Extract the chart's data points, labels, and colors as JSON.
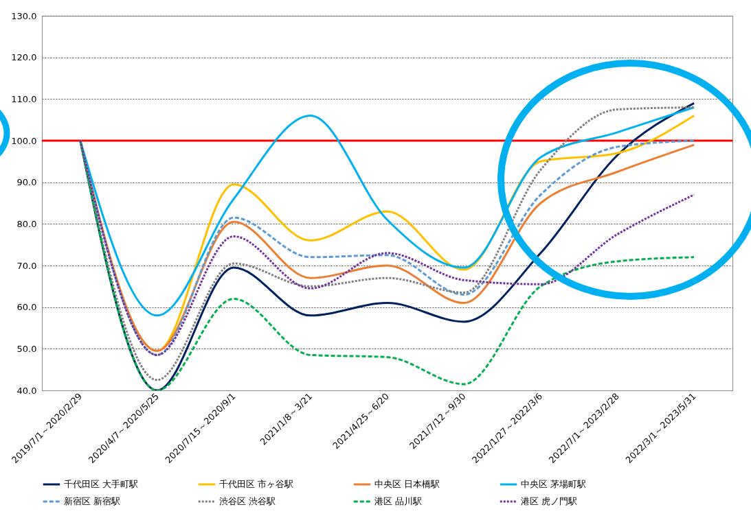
{
  "chart_data": {
    "type": "line",
    "categories": [
      "2019/7/1～2020/2/29",
      "2020/4/7～2020/5/25",
      "2020/7/15～2020/9/1",
      "2021/1/8～3/21",
      "2021/4/25～6/20",
      "2021/7/12～9/30",
      "2022/1/27～2022/3/6",
      "2022/7/1～2023/2/28",
      "2022/3/1～2023/5/31"
    ],
    "series": [
      {
        "name": "千代田区 大手町駅",
        "color": "#002060",
        "line_style": "solid",
        "values": [
          100,
          40,
          69.5,
          58,
          61,
          56.5,
          73,
          96.5,
          109
        ]
      },
      {
        "name": "千代田区 市ヶ谷駅",
        "color": "#ffc000",
        "line_style": "solid",
        "values": [
          100,
          49.5,
          89.5,
          76,
          83,
          69,
          95,
          97,
          106
        ]
      },
      {
        "name": "中央区 日本橋駅",
        "color": "#ed7d31",
        "line_style": "solid",
        "values": [
          100,
          49.5,
          80.5,
          67,
          70,
          61,
          85,
          92.5,
          99
        ]
      },
      {
        "name": "中央区 茅場町駅",
        "color": "#00b0f0",
        "line_style": "solid",
        "values": [
          100,
          58,
          86,
          106,
          81,
          69.5,
          96,
          102,
          108
        ]
      },
      {
        "name": "新宿区 新宿駅",
        "color": "#5b9bd5",
        "line_style": "dashed",
        "values": [
          100,
          48.5,
          81.5,
          72,
          72.5,
          63,
          87,
          98.5,
          100
        ]
      },
      {
        "name": "渋谷区 渋谷駅",
        "color": "#7f7f7f",
        "line_style": "dotted",
        "values": [
          100,
          42.5,
          70.5,
          65,
          67,
          63.5,
          93,
          107.5,
          108
        ]
      },
      {
        "name": "港区 品川駅",
        "color": "#00b050",
        "line_style": "dashed",
        "values": [
          100,
          40,
          62,
          48.5,
          48,
          41.5,
          65,
          71,
          72
        ]
      },
      {
        "name": "港区 虎ノ門駅",
        "color": "#7030a0",
        "line_style": "dotted",
        "values": [
          100,
          48.5,
          77,
          64.5,
          73,
          66.5,
          65.5,
          77.5,
          87
        ]
      }
    ],
    "ylim": [
      40,
      130
    ],
    "yticks": [
      {
        "value": 40,
        "label": "40.0"
      },
      {
        "value": 50,
        "label": "50.0"
      },
      {
        "value": 60,
        "label": "60.0"
      },
      {
        "value": 70,
        "label": "70.0"
      },
      {
        "value": 80,
        "label": "80.0"
      },
      {
        "value": 90,
        "label": "90.0"
      },
      {
        "value": 100,
        "label": "100.0"
      },
      {
        "value": 110,
        "label": "110.0"
      },
      {
        "value": 120,
        "label": "120.0"
      },
      {
        "value": 130,
        "label": "130.0"
      }
    ],
    "ref_lines": [
      {
        "axis": "y",
        "value": 100,
        "color": "#ff0000"
      }
    ],
    "grid": "y",
    "legend": "bottom"
  }
}
